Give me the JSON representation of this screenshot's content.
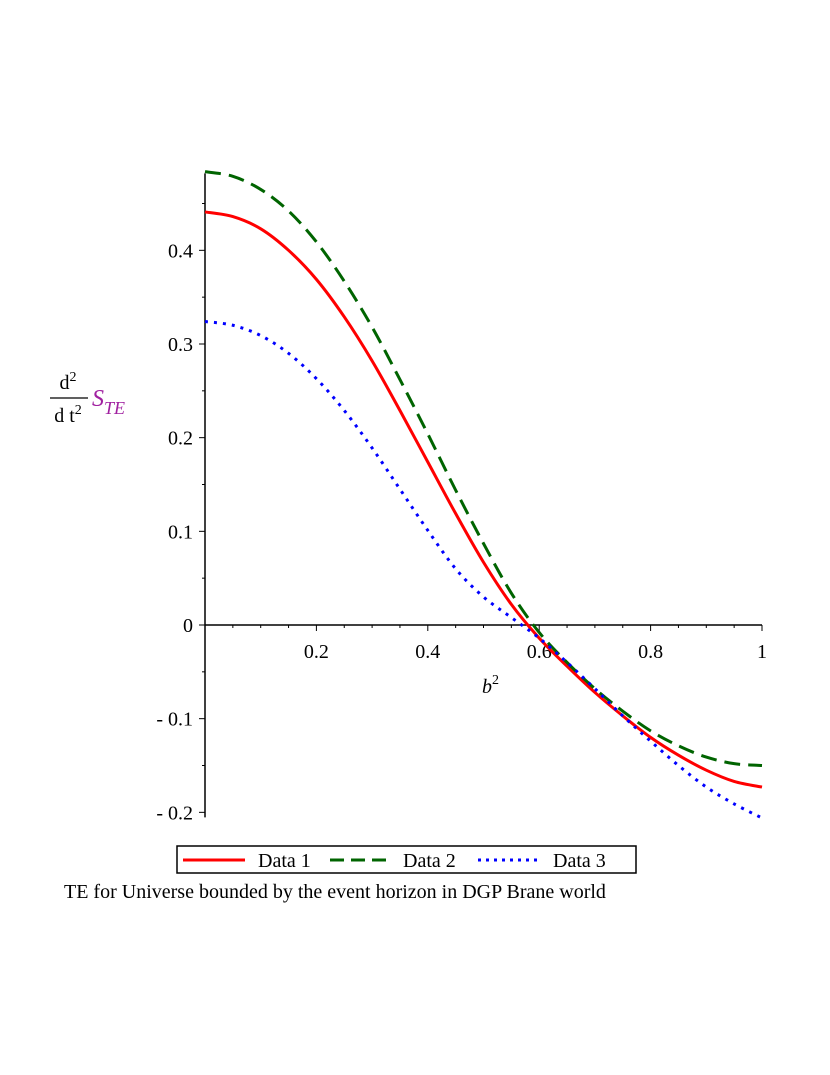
{
  "chart_data": {
    "type": "line",
    "title": "",
    "caption": "TE for Universe bounded by the event horizon in DGP Brane world",
    "xlabel": {
      "base": "b",
      "sup": "2"
    },
    "ylabel": {
      "num": "d",
      "num_sup": "2",
      "den": "d t",
      "den_sup": "2",
      "var": "S",
      "var_sub": "TE"
    },
    "xlim": [
      0,
      1
    ],
    "ylim": [
      -0.2,
      0.48
    ],
    "x_ticks": [
      {
        "value": 0.2,
        "label": "0.2"
      },
      {
        "value": 0.4,
        "label": "0.4"
      },
      {
        "value": 0.6,
        "label": "0.6"
      },
      {
        "value": 0.8,
        "label": "0.8"
      },
      {
        "value": 1,
        "label": "1"
      }
    ],
    "y_ticks": [
      {
        "value": -0.2,
        "label": "- 0.2"
      },
      {
        "value": -0.1,
        "label": "- 0.1"
      },
      {
        "value": 0,
        "label": "0"
      },
      {
        "value": 0.1,
        "label": "0.1"
      },
      {
        "value": 0.2,
        "label": "0.2"
      },
      {
        "value": 0.3,
        "label": "0.3"
      },
      {
        "value": 0.4,
        "label": "0.4"
      }
    ],
    "x": [
      0,
      0.05,
      0.1,
      0.15,
      0.2,
      0.25,
      0.3,
      0.35,
      0.4,
      0.45,
      0.5,
      0.55,
      0.6,
      0.65,
      0.7,
      0.75,
      0.8,
      0.85,
      0.9,
      0.95,
      1
    ],
    "series": [
      {
        "name": "Data 1",
        "color": "#ff0000",
        "style": "solid",
        "values": [
          0.441,
          0.436,
          0.423,
          0.4,
          0.369,
          0.329,
          0.282,
          0.229,
          0.174,
          0.119,
          0.067,
          0.022,
          -0.014,
          -0.044,
          -0.072,
          -0.097,
          -0.12,
          -0.139,
          -0.155,
          -0.167,
          -0.173
        ]
      },
      {
        "name": "Data 2",
        "color": "#006400",
        "style": "dashed",
        "values": [
          0.484,
          0.479,
          0.465,
          0.442,
          0.409,
          0.367,
          0.318,
          0.262,
          0.204,
          0.144,
          0.087,
          0.034,
          -0.008,
          -0.04,
          -0.068,
          -0.092,
          -0.113,
          -0.129,
          -0.141,
          -0.148,
          -0.15
        ]
      },
      {
        "name": "Data 3",
        "color": "#0000ff",
        "style": "dotted",
        "values": [
          0.324,
          0.32,
          0.309,
          0.29,
          0.263,
          0.229,
          0.189,
          0.145,
          0.101,
          0.06,
          0.03,
          0.008,
          -0.014,
          -0.04,
          -0.068,
          -0.097,
          -0.124,
          -0.15,
          -0.173,
          -0.191,
          -0.206
        ]
      }
    ],
    "legend_position": "bottom"
  }
}
